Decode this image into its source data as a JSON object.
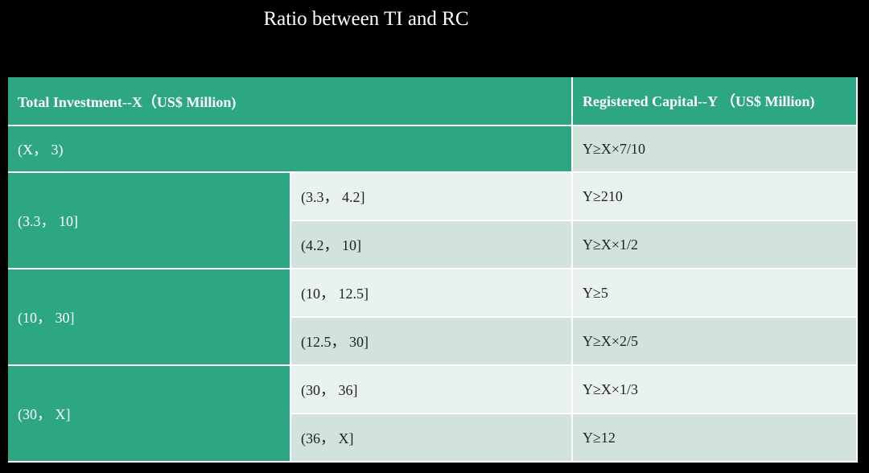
{
  "title": "Ratio between TI and RC",
  "table": {
    "header": [
      "Total Investment--X（US$ Million)",
      "Registered Capital--Y （US$ Million)"
    ],
    "groups": [
      {
        "range": "(X， 3)",
        "result": "Y≥X×7/10"
      },
      {
        "range": "(3.3， 10]",
        "sub": [
          {
            "range": "(3.3， 4.2]",
            "result": "Y≥210"
          },
          {
            "range": "(4.2， 10]",
            "result": "Y≥X×1/2"
          }
        ]
      },
      {
        "range": "(10， 30]",
        "sub": [
          {
            "range": "(10， 12.5]",
            "result": "Y≥5"
          },
          {
            "range": "(12.5， 30]",
            "result": "Y≥X×2/5"
          }
        ]
      },
      {
        "range": "(30， X]",
        "sub": [
          {
            "range": "(30， 36]",
            "result": "Y≥X×1/3"
          },
          {
            "range": "(36， X]",
            "result": "Y≥12"
          }
        ]
      }
    ]
  }
}
